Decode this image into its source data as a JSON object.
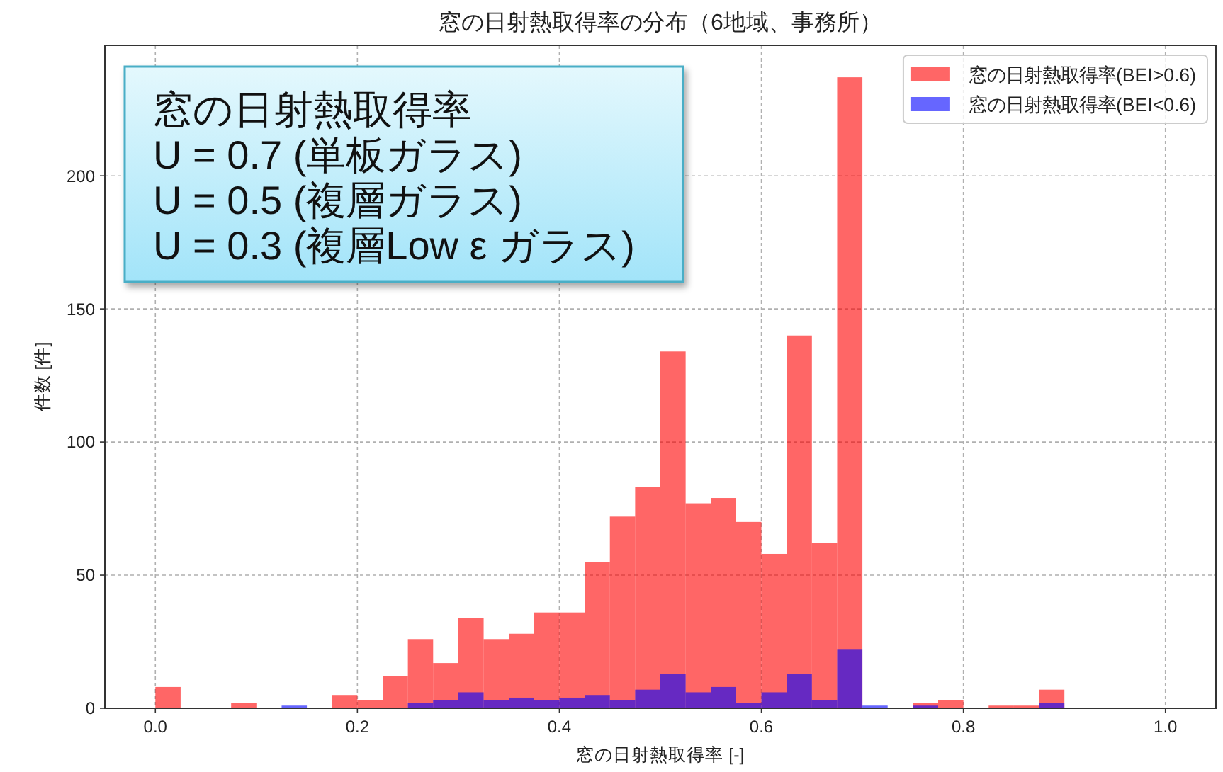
{
  "chart_data": {
    "type": "histogram",
    "title": "窓の日射熱取得率の分布（6地域、事務所）",
    "xlabel": "窓の日射熱取得率 [-]",
    "ylabel": "件数 [件]",
    "bins": [
      0,
      0.025,
      0.05,
      0.075,
      0.1,
      0.125,
      0.15,
      0.175,
      0.2,
      0.225,
      0.25,
      0.275,
      0.3,
      0.325,
      0.35,
      0.375,
      0.4,
      0.425,
      0.45,
      0.475,
      0.5,
      0.525,
      0.55,
      0.575,
      0.6,
      0.625,
      0.65,
      0.675,
      0.7,
      0.725,
      0.75,
      0.775,
      0.8,
      0.825,
      0.85,
      0.875,
      0.9
    ],
    "series": [
      {
        "name": "窓の日射熱取得率(BEI>0.6)",
        "color": "#ff6666",
        "values": [
          8,
          0,
          0,
          2,
          0,
          null,
          0,
          5,
          3,
          12,
          26,
          17,
          34,
          26,
          28,
          36,
          36,
          55,
          72,
          83,
          134,
          77,
          79,
          70,
          58,
          140,
          62,
          237,
          0,
          0,
          2,
          3,
          0,
          1,
          1,
          7
        ]
      },
      {
        "name": "窓の日射熱取得率(BEI<0.6)",
        "color": "#6666ff",
        "values": [
          0,
          0,
          0,
          0,
          0,
          1,
          0,
          0,
          0,
          0,
          2,
          3,
          6,
          3,
          4,
          3,
          4,
          5,
          3,
          7,
          13,
          6,
          8,
          2,
          6,
          13,
          3,
          22,
          1,
          0,
          1,
          0,
          0,
          0,
          0,
          2
        ]
      }
    ],
    "xlim": [
      -0.05,
      1.05
    ],
    "ylim": [
      0,
      249
    ],
    "xticks": [
      {
        "value": 0,
        "label": "0.0"
      },
      {
        "value": 0.2,
        "label": "0.2"
      },
      {
        "value": 0.4,
        "label": "0.4"
      },
      {
        "value": 0.6,
        "label": "0.6"
      },
      {
        "value": 0.8,
        "label": "0.8"
      },
      {
        "value": 1,
        "label": "1.0"
      }
    ],
    "yticks": [
      0,
      50,
      100,
      150,
      200
    ],
    "grid": true,
    "legend": "top right",
    "annotations": [
      "窓の日射熱取得率\nU = 0.7 (単板ガラス)\nU = 0.5 (複層ガラス)\nU = 0.3 (複層Low ε ガラス)"
    ]
  }
}
